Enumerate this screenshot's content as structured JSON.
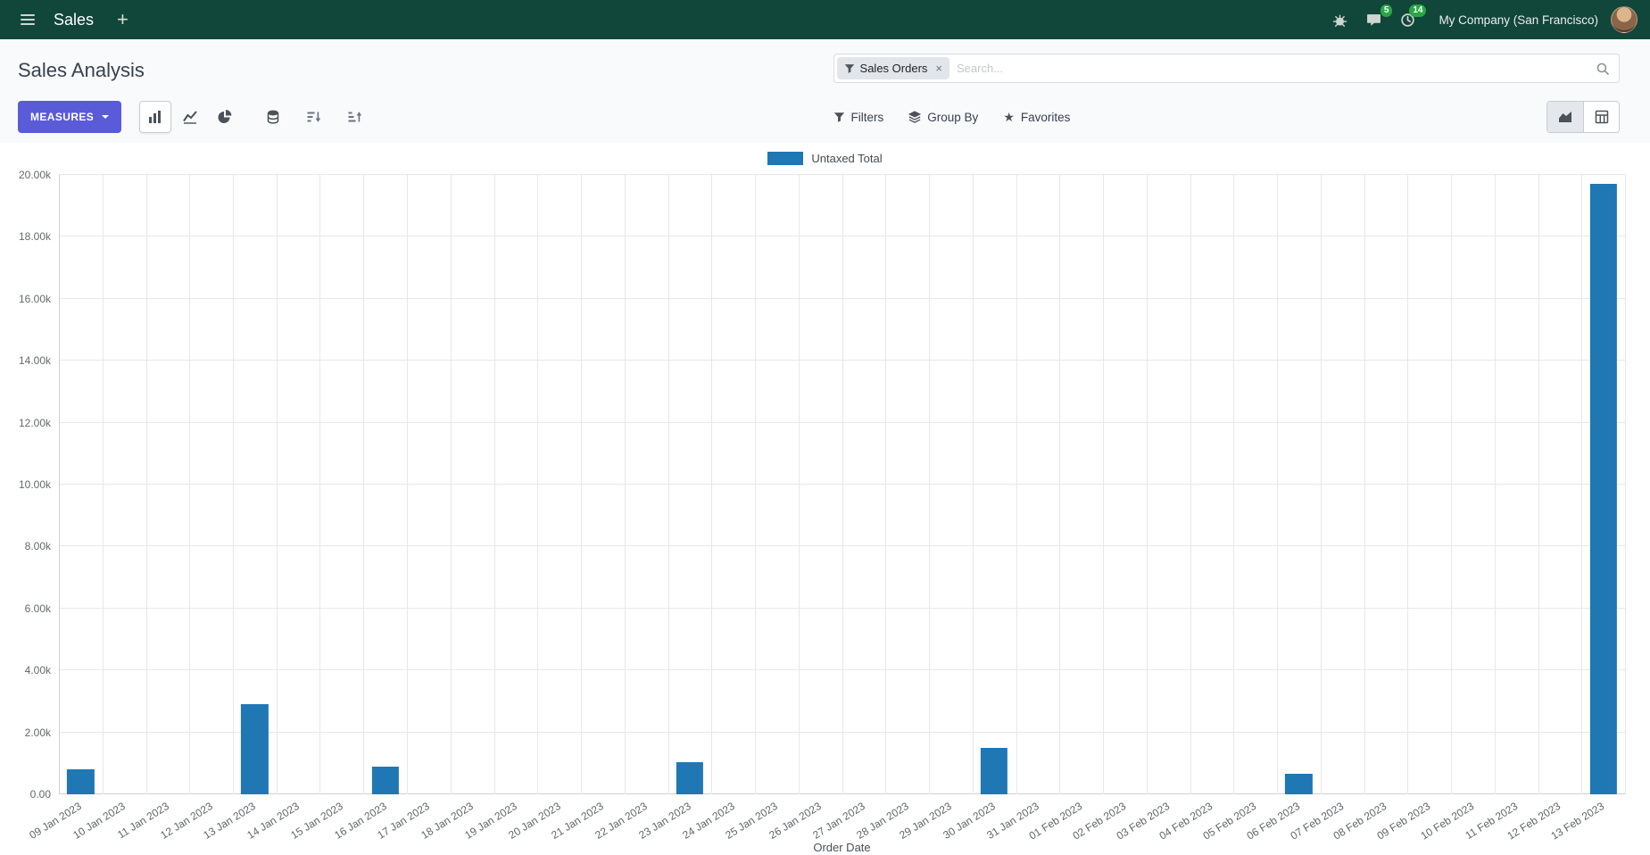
{
  "navbar": {
    "app_name": "Sales",
    "plus": "+",
    "messages_badge": "5",
    "activities_badge": "14",
    "company": "My Company (San Francisco)"
  },
  "control_panel": {
    "title": "Sales Analysis",
    "search": {
      "facet_label": "Sales Orders",
      "facet_remove": "×",
      "placeholder": "Search..."
    },
    "buttons": {
      "measures": "MEASURES",
      "filters": "Filters",
      "group_by": "Group By",
      "favorites": "Favorites",
      "favorites_star": "★"
    }
  },
  "chart_data": {
    "type": "bar",
    "title": "",
    "series_name": "Untaxed Total",
    "xlabel": "Order Date",
    "ylabel": "",
    "ylim": [
      0,
      20000
    ],
    "ytick_step": 2000,
    "grid": true,
    "legend_position": "top",
    "bar_color": "#1f77b4",
    "categories": [
      "09 Jan 2023",
      "10 Jan 2023",
      "11 Jan 2023",
      "12 Jan 2023",
      "13 Jan 2023",
      "14 Jan 2023",
      "15 Jan 2023",
      "16 Jan 2023",
      "17 Jan 2023",
      "18 Jan 2023",
      "19 Jan 2023",
      "20 Jan 2023",
      "21 Jan 2023",
      "22 Jan 2023",
      "23 Jan 2023",
      "24 Jan 2023",
      "25 Jan 2023",
      "26 Jan 2023",
      "27 Jan 2023",
      "28 Jan 2023",
      "29 Jan 2023",
      "30 Jan 2023",
      "31 Jan 2023",
      "01 Feb 2023",
      "02 Feb 2023",
      "03 Feb 2023",
      "04 Feb 2023",
      "05 Feb 2023",
      "06 Feb 2023",
      "07 Feb 2023",
      "08 Feb 2023",
      "09 Feb 2023",
      "10 Feb 2023",
      "11 Feb 2023",
      "12 Feb 2023",
      "13 Feb 2023"
    ],
    "values": [
      800,
      0,
      0,
      0,
      2900,
      0,
      0,
      900,
      0,
      0,
      0,
      0,
      0,
      0,
      1050,
      0,
      0,
      0,
      0,
      0,
      0,
      1500,
      0,
      0,
      0,
      0,
      0,
      0,
      650,
      0,
      0,
      0,
      0,
      0,
      0,
      19700
    ]
  },
  "colors": {
    "navbar_bg": "#11463a",
    "primary_button": "#5a5bd8",
    "badge_green": "#28a745",
    "bar_blue": "#1f77b4"
  }
}
